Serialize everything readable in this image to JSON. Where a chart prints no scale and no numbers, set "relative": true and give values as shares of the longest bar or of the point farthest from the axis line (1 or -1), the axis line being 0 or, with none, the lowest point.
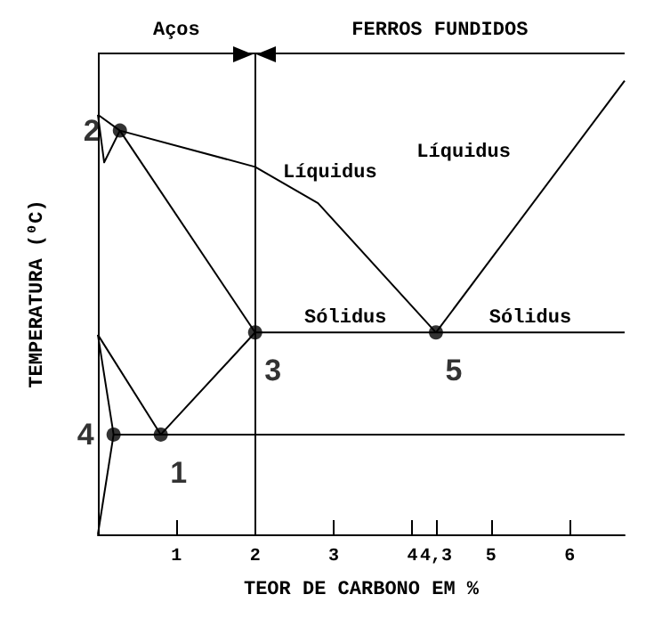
{
  "chart_data": {
    "type": "line",
    "relative": true,
    "xlabel": "TEOR DE CARBONO EM %",
    "ylabel": "TEMPERATURA (⁰C)",
    "xlim": [
      0,
      6.7
    ],
    "xticks": [
      1,
      2,
      3,
      4,
      {
        "value": 4.3,
        "label": "4,3"
      },
      5,
      6
    ],
    "marker": "none",
    "grid": false,
    "series": [
      {
        "name": "Líquidus",
        "color": "#000000",
        "x": [
          0,
          0.28,
          2,
          2.8,
          4.3
        ],
        "values": [
          0.925,
          0.89,
          0.81,
          0.73,
          0.445
        ]
      },
      {
        "name": "Líquidus",
        "color": "#000000",
        "x": [
          4.3,
          6.7
        ],
        "values": [
          0.445,
          1
        ]
      },
      {
        "color": "#000000",
        "x": [
          0,
          0.08,
          0.28
        ],
        "values": [
          0.925,
          0.82,
          0.89
        ]
      },
      {
        "color": "#000000",
        "x": [
          0.28,
          2
        ],
        "values": [
          0.89,
          0.445
        ]
      },
      {
        "name": "Sólidus",
        "color": "#000000",
        "x": [
          2,
          4.3
        ],
        "values": [
          0.445,
          0.445
        ]
      },
      {
        "name": "Sólidus",
        "color": "#000000",
        "x": [
          4.3,
          6.7
        ],
        "values": [
          0.445,
          0.445
        ]
      },
      {
        "color": "#000000",
        "x": [
          0,
          0.8,
          2
        ],
        "values": [
          0.44,
          0.22,
          0.445
        ]
      },
      {
        "color": "#000000",
        "x": [
          0.2,
          6.7
        ],
        "values": [
          0.22,
          0.22
        ]
      },
      {
        "color": "#000000",
        "x": [
          0,
          0.2,
          0
        ],
        "values": [
          0,
          0.22,
          0.44
        ]
      },
      {
        "type": "scatter",
        "marker": "circle",
        "color": "#000000",
        "x": [
          0.8,
          0.28,
          2,
          0.2,
          4.3
        ],
        "values": [
          0.22,
          0.89,
          0.445,
          0.22,
          0.445
        ]
      }
    ],
    "ref_lines": [
      {
        "axis": "x",
        "value": 2
      }
    ],
    "annotations": [
      "Aços",
      "FERROS FUNDIDOS",
      {
        "text": "1",
        "x": 0.8,
        "y": 0.22
      },
      {
        "text": "2",
        "x": 0.28,
        "y": 0.89
      },
      {
        "text": "3",
        "x": 2,
        "y": 0.445
      },
      {
        "text": "4",
        "x": 0.2,
        "y": 0.22
      },
      {
        "text": "5",
        "x": 4.3,
        "y": 0.445
      }
    ]
  }
}
